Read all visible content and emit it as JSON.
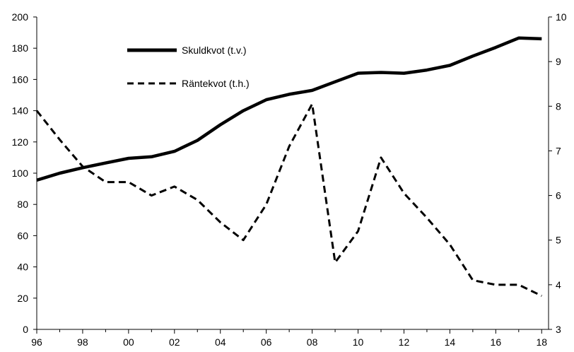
{
  "chart_data": {
    "type": "line",
    "title": "",
    "xlabel": "",
    "ylabel": "",
    "x_ticks": [
      "96",
      "98",
      "00",
      "02",
      "04",
      "06",
      "08",
      "10",
      "12",
      "14",
      "16",
      "18"
    ],
    "x": [
      1996,
      1997,
      1998,
      1999,
      2000,
      2001,
      2002,
      2003,
      2004,
      2005,
      2006,
      2007,
      2008,
      2009,
      2010,
      2011,
      2012,
      2013,
      2014,
      2015,
      2016,
      2017,
      2018
    ],
    "xlim": [
      1996,
      2018.3
    ],
    "y_left": {
      "ticks": [
        0,
        20,
        40,
        60,
        80,
        100,
        120,
        140,
        160,
        180,
        200
      ],
      "lim": [
        0,
        200
      ]
    },
    "y_right": {
      "ticks": [
        3,
        4,
        5,
        6,
        7,
        8,
        9,
        10
      ],
      "lim": [
        3,
        10
      ]
    },
    "series": [
      {
        "name": "Skuldkvot (t.v.)",
        "axis": "left",
        "style": "solid",
        "color": "#000000",
        "values": [
          95.5,
          100,
          103.5,
          106.5,
          109.5,
          110.5,
          114,
          121,
          131,
          140,
          147,
          150.5,
          153,
          158.5,
          164,
          164.5,
          164,
          166,
          169,
          175,
          180.5,
          186.5,
          186
        ]
      },
      {
        "name": "Räntekvot (t.h.)",
        "axis": "right",
        "style": "dashed",
        "color": "#000000",
        "values": [
          7.9,
          7.25,
          6.65,
          6.3,
          6.3,
          6.0,
          6.2,
          5.9,
          5.4,
          5.0,
          5.8,
          7.1,
          8.05,
          4.5,
          5.2,
          6.85,
          6.05,
          5.5,
          4.9,
          4.1,
          4.0,
          4.0,
          3.75
        ]
      }
    ],
    "legend": {
      "placement": "top-left",
      "entries": [
        "Skuldkvot (t.v.)",
        "Räntekvot (t.h.)"
      ]
    },
    "grid": false
  }
}
